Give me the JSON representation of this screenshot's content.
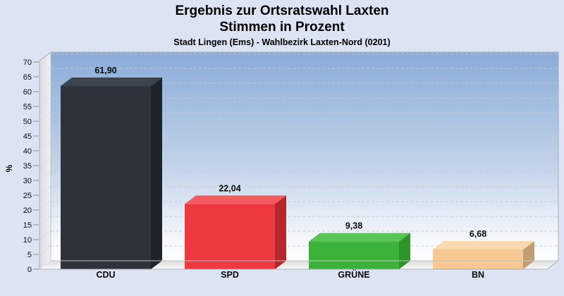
{
  "header": {
    "title": "Ergebnis zur Ortsratswahl Laxten",
    "subtitle": "Stimmen in Prozent",
    "caption": "Stadt Lingen (Ems) - Wahlbezirk Laxten-Nord (0201)"
  },
  "chart_data": {
    "type": "bar",
    "style": "3d-column",
    "title": "Ergebnis zur Ortsratswahl Laxten",
    "subtitle": "Stimmen in Prozent",
    "caption": "Stadt Lingen (Ems) - Wahlbezirk Laxten-Nord (0201)",
    "categories": [
      "CDU",
      "SPD",
      "GRÜNE",
      "BN"
    ],
    "values": [
      61.9,
      22.04,
      9.38,
      6.68
    ],
    "value_labels": [
      "61,90",
      "22,04",
      "9,38",
      "6,68"
    ],
    "xlabel": "",
    "ylabel": "%",
    "ylim": [
      0,
      70
    ],
    "ytick_step": 5,
    "ytick_labels": [
      "0",
      "5",
      "10",
      "15",
      "20",
      "25",
      "30",
      "35",
      "40",
      "45",
      "50",
      "55",
      "60",
      "65",
      "70"
    ],
    "grid": "dashed-horizontal",
    "legend": "none",
    "bar_colors": [
      {
        "party": "CDU",
        "front": "#2e333b",
        "top": "#3e444e",
        "side": "#1f242b"
      },
      {
        "party": "SPD",
        "front": "#ef3940",
        "top": "#f25c60",
        "side": "#b8262d"
      },
      {
        "party": "GRÜNE",
        "front": "#3db23a",
        "top": "#57c653",
        "side": "#2e9429"
      },
      {
        "party": "BN",
        "front": "#f7c893",
        "top": "#fbd9ae",
        "side": "#c19e74"
      }
    ],
    "colors": {
      "page_background": "#dce3f2",
      "plot_gradient_top": "#8aacd8",
      "plot_gradient_bottom": "#ffffff",
      "wall": "#e4e6ea",
      "floor": "#ececec",
      "gridline": "#c9c9c9",
      "frame": "#a9adb5",
      "text": "#0a0a0a"
    }
  }
}
